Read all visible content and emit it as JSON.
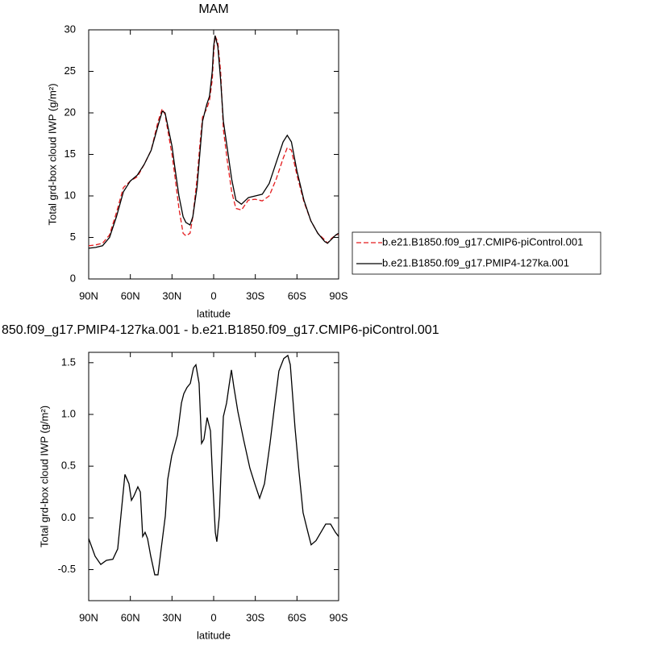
{
  "chart_data": [
    {
      "type": "line",
      "title": "MAM",
      "xlabel": "latitude",
      "ylabel": "Total grd-box cloud IWP (g/m²)",
      "x": [
        90,
        85,
        80,
        75,
        70,
        65,
        60,
        55,
        50,
        45,
        40,
        37,
        35,
        30,
        28,
        25,
        22,
        20,
        17,
        15,
        12,
        10,
        8,
        5,
        3,
        1,
        0,
        -1,
        -3,
        -5,
        -7,
        -10,
        -13,
        -16,
        -20,
        -25,
        -30,
        -35,
        -40,
        -45,
        -50,
        -53,
        -56,
        -60,
        -65,
        -70,
        -75,
        -80,
        -82,
        -85,
        -88,
        -90
      ],
      "series": [
        {
          "name": "b.e21.B1850.f09_g17.CMIP6-piControl.001",
          "color": "#e41a1c",
          "dash": "dashed",
          "values": [
            4.0,
            4.1,
            4.3,
            5.3,
            8,
            11,
            11.8,
            12.3,
            13.8,
            15.5,
            19,
            20.5,
            19.8,
            15,
            12.5,
            8.5,
            5.5,
            5.2,
            5.5,
            7.5,
            12,
            16,
            19.5,
            20.5,
            21.5,
            24,
            27,
            29.3,
            28.5,
            25,
            18,
            14,
            10.5,
            8.5,
            8.3,
            9.5,
            9.6,
            9.4,
            10,
            12,
            14.5,
            15.8,
            15.5,
            12.5,
            9.3,
            7.0,
            5.5,
            4.7,
            4.3,
            4.9,
            5.3,
            5.4
          ]
        },
        {
          "name": "b.e21.B1850.f09_g17.PMIP4-127ka.001",
          "color": "#000000",
          "dash": "solid",
          "values": [
            3.7,
            3.8,
            4.0,
            5.0,
            7.5,
            10.5,
            11.8,
            12.5,
            13.8,
            15.5,
            18.5,
            20.2,
            20.0,
            16.0,
            13.5,
            10,
            7.5,
            6.8,
            6.5,
            7.5,
            11,
            15,
            19,
            21,
            22,
            25,
            28,
            29.3,
            28,
            24,
            19,
            15.5,
            12,
            9.5,
            9.0,
            9.8,
            10.0,
            10.2,
            11.5,
            14,
            16.5,
            17.3,
            16.5,
            13,
            9.5,
            7.0,
            5.5,
            4.5,
            4.3,
            4.8,
            5.3,
            5.5
          ]
        }
      ],
      "xlim": [
        90,
        -90
      ],
      "xticks": [
        {
          "value": 90,
          "label": "90N"
        },
        {
          "value": 60,
          "label": "60N"
        },
        {
          "value": 30,
          "label": "30N"
        },
        0,
        {
          "value": -30,
          "label": "30S"
        },
        {
          "value": -60,
          "label": "60S"
        },
        {
          "value": -90,
          "label": "90S"
        }
      ],
      "ylim": [
        0,
        30
      ],
      "yticks": [
        0,
        5,
        10,
        15,
        20,
        25,
        30
      ],
      "legend": "outside-right"
    },
    {
      "type": "line",
      "title": "850.f09_g17.PMIP4-127ka.001 - b.e21.B1850.f09_g17.CMIP6-piControl.001",
      "xlabel": "latitude",
      "ylabel": "Total grd-box cloud IWP (g/m²)",
      "x": [
        90,
        85.4,
        81.3,
        77.2,
        72.6,
        69.1,
        66.8,
        63.9,
        61.0,
        59.2,
        57.5,
        54.6,
        52.8,
        51.1,
        49.4,
        47.6,
        45.3,
        42.4,
        40.1,
        37.8,
        34.8,
        33.1,
        30.2,
        28.5,
        26.1,
        23.2,
        21.5,
        19.2,
        16.8,
        14.5,
        12.8,
        10.5,
        8.7,
        7.0,
        4.7,
        2.3,
        0.6,
        -1.2,
        -2.3,
        -4.1,
        -5.2,
        -7.0,
        -9.3,
        -11.0,
        -12.8,
        -14.5,
        -17.4,
        -21.5,
        -26.1,
        -29.6,
        -33.1,
        -36.6,
        -40.6,
        -44.1,
        -47.0,
        -50.5,
        -53.4,
        -55.2,
        -58.6,
        -61.5,
        -64.4,
        -67.9,
        -70.2,
        -73.7,
        -77.2,
        -80.7,
        -84.2,
        -87.7,
        -90
      ],
      "series": [
        {
          "color": "#000000",
          "dash": "solid",
          "values": [
            -0.2,
            -0.37,
            -0.45,
            -0.41,
            -0.4,
            -0.3,
            0.02,
            0.42,
            0.33,
            0.17,
            0.21,
            0.3,
            0.25,
            -0.18,
            -0.14,
            -0.2,
            -0.37,
            -0.55,
            -0.55,
            -0.3,
            0.02,
            0.37,
            0.6,
            0.68,
            0.8,
            1.11,
            1.2,
            1.26,
            1.3,
            1.45,
            1.48,
            1.3,
            0.72,
            0.76,
            0.97,
            0.84,
            0.33,
            -0.14,
            -0.23,
            0.02,
            0.41,
            0.98,
            1.11,
            1.27,
            1.43,
            1.27,
            1.03,
            0.76,
            0.48,
            0.33,
            0.19,
            0.33,
            0.72,
            1.11,
            1.42,
            1.54,
            1.57,
            1.48,
            0.87,
            0.44,
            0.05,
            -0.14,
            -0.26,
            -0.22,
            -0.14,
            -0.06,
            -0.06,
            -0.14,
            -0.18
          ]
        }
      ],
      "xlim": [
        90,
        -90
      ],
      "xticks": [
        {
          "value": 90,
          "label": "90N"
        },
        {
          "value": 60,
          "label": "60N"
        },
        {
          "value": 30,
          "label": "30N"
        },
        0,
        {
          "value": -30,
          "label": "30S"
        },
        {
          "value": -60,
          "label": "60S"
        },
        {
          "value": -90,
          "label": "90S"
        }
      ],
      "ylim": [
        -0.8,
        1.6
      ],
      "yticks": [
        -0.5,
        {
          "value": 0,
          "label": "0.0"
        },
        0.5,
        {
          "value": 1,
          "label": "1.0"
        },
        1.5
      ]
    }
  ]
}
